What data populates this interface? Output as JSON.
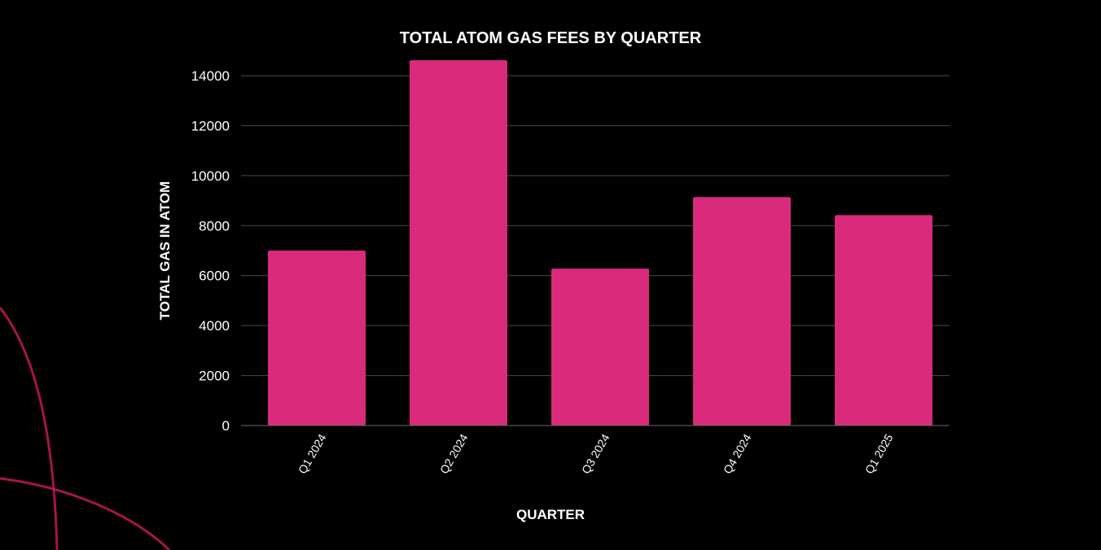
{
  "colors": {
    "background": "#000000",
    "bar": "#d92a7c",
    "grid": "#4a4a4a",
    "text": "#ffffff",
    "decoration": "#c2185b"
  },
  "chart_data": {
    "type": "bar",
    "title": "TOTAL ATOM GAS FEES BY QUARTER",
    "xlabel": "QUARTER",
    "ylabel": "TOTAL GAS IN ATOM",
    "categories": [
      "Q1 2024",
      "Q2 2024",
      "Q3 2024",
      "Q4 2024",
      "Q1 2025"
    ],
    "values": [
      7000,
      14620,
      6280,
      9140,
      8420
    ],
    "ylim": [
      0,
      15000
    ],
    "yticks": [
      0,
      2000,
      4000,
      6000,
      8000,
      10000,
      12000,
      14000
    ],
    "grid": true,
    "legend": "none"
  }
}
